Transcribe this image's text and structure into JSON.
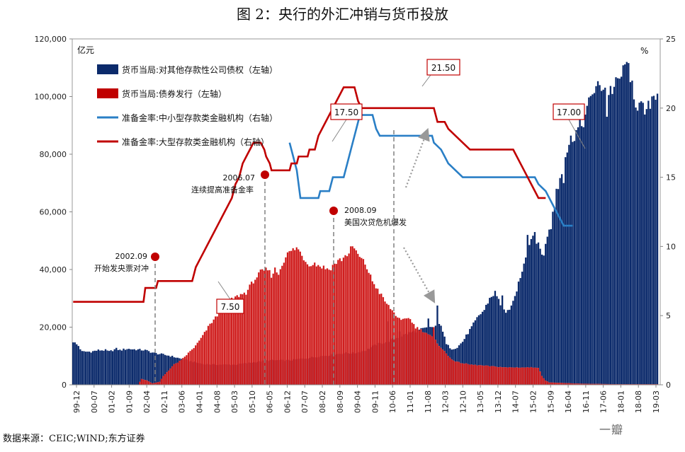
{
  "title": "图 2：央行的外汇冲销与货币投放",
  "source": "数据来源：CEIC;WIND;东方证券",
  "watermark": "一瓣",
  "chart_data": {
    "type": "bar+line",
    "title": "图 2：央行的外汇冲销与货币投放",
    "left_axis": {
      "label": "亿元",
      "min": 0,
      "max": 120000,
      "ticks": [
        0,
        20000,
        40000,
        60000,
        80000,
        100000,
        120000
      ],
      "tick_labels": [
        "0",
        "20,000",
        "40,000",
        "60,000",
        "80,000",
        "100,000",
        "120,000"
      ]
    },
    "right_axis": {
      "label": "%",
      "min": 0,
      "max": 25,
      "ticks": [
        0,
        5,
        10,
        15,
        20,
        25
      ],
      "tick_labels": [
        "0",
        "5",
        "10",
        "15",
        "20",
        "25"
      ]
    },
    "x_tick_labels": [
      "99-12",
      "00-07",
      "01-02",
      "01-09",
      "02-04",
      "02-11",
      "03-06",
      "04-01",
      "04-08",
      "05-03",
      "05-10",
      "06-05",
      "06-12",
      "07-07",
      "08-02",
      "08-09",
      "09-04",
      "09-11",
      "10-06",
      "11-01",
      "11-08",
      "12-03",
      "12-10",
      "13-05",
      "13-12",
      "14-07",
      "15-02",
      "15-09",
      "16-04",
      "16-11",
      "17-06",
      "18-01",
      "18-08",
      "19-03"
    ],
    "legend": [
      {
        "name": "货币当局:对其他存款性公司债权（左轴）",
        "color": "#0b2a6b",
        "kind": "bar"
      },
      {
        "name": "货币当局:债券发行（左轴）",
        "color": "#c00000",
        "kind": "bar"
      },
      {
        "name": "准备金率:中小型存款类金融机构（右轴）",
        "color": "#2a7fc6",
        "kind": "line"
      },
      {
        "name": "准备金率:大型存款类金融机构（右轴）",
        "color": "#c00000",
        "kind": "line"
      }
    ],
    "series": [
      {
        "name": "货币当局:对其他存款性公司债权（左轴）",
        "axis": "left",
        "points": [
          [
            0,
            15000
          ],
          [
            3,
            13500
          ],
          [
            5,
            11500
          ],
          [
            10,
            11500
          ],
          [
            14,
            12000
          ],
          [
            18,
            12000
          ],
          [
            20,
            11500
          ],
          [
            24,
            12500
          ],
          [
            26,
            12000
          ],
          [
            30,
            12500
          ],
          [
            34,
            12300
          ],
          [
            40,
            12000
          ],
          [
            45,
            11000
          ],
          [
            50,
            10500
          ],
          [
            54,
            10000
          ],
          [
            60,
            9000
          ],
          [
            66,
            8000
          ],
          [
            72,
            7200
          ],
          [
            78,
            7000
          ],
          [
            84,
            7000
          ],
          [
            90,
            7000
          ],
          [
            96,
            7500
          ],
          [
            102,
            8000
          ],
          [
            108,
            8500
          ],
          [
            114,
            8500
          ],
          [
            120,
            8500
          ],
          [
            126,
            9000
          ],
          [
            132,
            9500
          ],
          [
            138,
            10000
          ],
          [
            144,
            10500
          ],
          [
            150,
            11000
          ],
          [
            156,
            11000
          ],
          [
            162,
            12000
          ],
          [
            168,
            14000
          ],
          [
            174,
            15000
          ],
          [
            180,
            16500
          ],
          [
            186,
            18000
          ],
          [
            192,
            19000
          ],
          [
            198,
            20000
          ],
          [
            204,
            21000
          ],
          [
            207,
            14000
          ],
          [
            210,
            12500
          ],
          [
            213,
            13000
          ],
          [
            216,
            15000
          ],
          [
            219,
            18000
          ],
          [
            222,
            21000
          ],
          [
            225,
            24000
          ],
          [
            228,
            26000
          ],
          [
            231,
            30000
          ],
          [
            234,
            32000
          ],
          [
            237,
            28000
          ],
          [
            240,
            25000
          ],
          [
            243,
            26000
          ],
          [
            246,
            33000
          ],
          [
            249,
            40000
          ],
          [
            252,
            48000
          ],
          [
            255,
            52000
          ],
          [
            258,
            48000
          ],
          [
            261,
            45000
          ],
          [
            264,
            55000
          ],
          [
            267,
            62000
          ],
          [
            270,
            72000
          ],
          [
            273,
            80000
          ],
          [
            276,
            85000
          ],
          [
            279,
            88000
          ],
          [
            282,
            90000
          ],
          [
            285,
            95000
          ],
          [
            288,
            102000
          ],
          [
            291,
            103000
          ],
          [
            294,
            104000
          ],
          [
            297,
            102000
          ],
          [
            300,
            103000
          ],
          [
            303,
            106000
          ],
          [
            306,
            110000
          ],
          [
            309,
            108000
          ],
          [
            312,
            98000
          ],
          [
            315,
            96000
          ],
          [
            318,
            94000
          ],
          [
            321,
            100000
          ],
          [
            324,
            102000
          ]
        ],
        "spikes": [
          [
            174,
            22000
          ],
          [
            181,
            18500
          ],
          [
            197,
            23000
          ],
          [
            200,
            20000
          ],
          [
            202,
            27500
          ],
          [
            238,
            31000
          ],
          [
            240,
            25000
          ],
          [
            243,
            27500
          ],
          [
            252,
            52000
          ],
          [
            256,
            53000
          ],
          [
            265,
            54000
          ],
          [
            268,
            68000
          ],
          [
            272,
            70000
          ],
          [
            296,
            93000
          ],
          [
            307,
            112000
          ],
          [
            309,
            105000
          ]
        ]
      },
      {
        "name": "货币当局:债券发行（左轴）",
        "axis": "left",
        "points": [
          [
            0,
            0
          ],
          [
            36,
            0
          ],
          [
            38,
            2000
          ],
          [
            41,
            1500
          ],
          [
            44,
            500
          ],
          [
            48,
            1000
          ],
          [
            50,
            3000
          ],
          [
            53,
            5000
          ],
          [
            56,
            7000
          ],
          [
            60,
            8500
          ],
          [
            64,
            11000
          ],
          [
            68,
            13500
          ],
          [
            72,
            17000
          ],
          [
            76,
            21000
          ],
          [
            80,
            24000
          ],
          [
            84,
            28500
          ],
          [
            88,
            29500
          ],
          [
            92,
            31000
          ],
          [
            96,
            32000
          ],
          [
            100,
            36000
          ],
          [
            104,
            39000
          ],
          [
            108,
            40000
          ],
          [
            110,
            38000
          ],
          [
            112,
            40000
          ],
          [
            114,
            38500
          ],
          [
            116,
            42000
          ],
          [
            118,
            44500
          ],
          [
            120,
            46000
          ],
          [
            124,
            47500
          ],
          [
            126,
            46000
          ],
          [
            130,
            42000
          ],
          [
            134,
            42000
          ],
          [
            138,
            41000
          ],
          [
            142,
            40000
          ],
          [
            146,
            42500
          ],
          [
            150,
            44000
          ],
          [
            154,
            46500
          ],
          [
            156,
            47500
          ],
          [
            158,
            45000
          ],
          [
            162,
            42000
          ],
          [
            166,
            36000
          ],
          [
            170,
            32000
          ],
          [
            174,
            28000
          ],
          [
            178,
            25000
          ],
          [
            182,
            22000
          ],
          [
            186,
            23500
          ],
          [
            190,
            20000
          ],
          [
            196,
            18000
          ],
          [
            200,
            16000
          ],
          [
            204,
            13000
          ],
          [
            208,
            10000
          ],
          [
            212,
            8000
          ],
          [
            216,
            7500
          ],
          [
            220,
            7000
          ],
          [
            230,
            6500
          ],
          [
            240,
            6000
          ],
          [
            250,
            6000
          ],
          [
            258,
            6000
          ],
          [
            260,
            3000
          ],
          [
            262,
            1500
          ],
          [
            264,
            800
          ],
          [
            280,
            400
          ],
          [
            300,
            200
          ],
          [
            324,
            200
          ]
        ],
        "spikes": [
          [
            154,
            48000
          ],
          [
            200,
            20000
          ]
        ]
      },
      {
        "name": "准备金率:中小型存款类金融机构（右轴）",
        "axis": "right",
        "points": [
          [
            120,
            17.5
          ],
          [
            121,
            17.0
          ],
          [
            122,
            16.5
          ],
          [
            123,
            16.0
          ],
          [
            124,
            15.5
          ],
          [
            125,
            14.5
          ],
          [
            126,
            13.5
          ],
          [
            136,
            13.5
          ],
          [
            137,
            14.0
          ],
          [
            142,
            14.0
          ],
          [
            143,
            14.5
          ],
          [
            144,
            15.0
          ],
          [
            150,
            15.0
          ],
          [
            151,
            15.5
          ],
          [
            152,
            16.0
          ],
          [
            153,
            16.5
          ],
          [
            154,
            17.0
          ],
          [
            155,
            17.5
          ],
          [
            156,
            18.0
          ],
          [
            157,
            18.5
          ],
          [
            158,
            19.0
          ],
          [
            159,
            19.5
          ],
          [
            166,
            19.5
          ],
          [
            167,
            19.0
          ],
          [
            168,
            18.5
          ],
          [
            170,
            18.0
          ],
          [
            199,
            18.0
          ],
          [
            200,
            17.5
          ],
          [
            204,
            17.0
          ],
          [
            206,
            16.5
          ],
          [
            208,
            16.0
          ],
          [
            212,
            15.5
          ],
          [
            216,
            15.0
          ],
          [
            256,
            15.0
          ],
          [
            258,
            14.5
          ],
          [
            262,
            14.0
          ],
          [
            264,
            13.5
          ],
          [
            266,
            13.0
          ],
          [
            268,
            12.5
          ],
          [
            270,
            12.0
          ],
          [
            272,
            11.5
          ],
          [
            277,
            11.5
          ]
        ]
      },
      {
        "name": "准备金率:大型存款类金融机构（右轴）",
        "axis": "right",
        "points": [
          [
            0,
            6.0
          ],
          [
            39,
            6.0
          ],
          [
            40,
            7.0
          ],
          [
            46,
            7.0
          ],
          [
            47,
            7.5
          ],
          [
            66,
            7.5
          ],
          [
            67,
            8.0
          ],
          [
            68,
            8.5
          ],
          [
            70,
            9.0
          ],
          [
            72,
            9.5
          ],
          [
            74,
            10.0
          ],
          [
            76,
            10.5
          ],
          [
            78,
            11.0
          ],
          [
            80,
            11.5
          ],
          [
            82,
            12.0
          ],
          [
            84,
            12.5
          ],
          [
            86,
            13.0
          ],
          [
            88,
            13.5
          ],
          [
            90,
            14.5
          ],
          [
            92,
            15.0
          ],
          [
            94,
            16.0
          ],
          [
            96,
            16.5
          ],
          [
            98,
            17.0
          ],
          [
            100,
            17.5
          ],
          [
            104,
            17.5
          ],
          [
            106,
            17.0
          ],
          [
            107,
            16.5
          ],
          [
            109,
            16.0
          ],
          [
            110,
            15.5
          ],
          [
            120,
            15.5
          ],
          [
            121,
            16.0
          ],
          [
            124,
            16.0
          ],
          [
            125,
            16.5
          ],
          [
            130,
            16.5
          ],
          [
            131,
            17.0
          ],
          [
            134,
            17.0
          ],
          [
            135,
            17.5
          ],
          [
            136,
            18.0
          ],
          [
            138,
            18.5
          ],
          [
            140,
            19.0
          ],
          [
            142,
            19.5
          ],
          [
            144,
            20.0
          ],
          [
            146,
            20.5
          ],
          [
            148,
            21.0
          ],
          [
            150,
            21.5
          ],
          [
            156,
            21.5
          ],
          [
            157,
            21.0
          ],
          [
            158,
            20.5
          ],
          [
            160,
            20.0
          ],
          [
            200,
            20.0
          ],
          [
            201,
            19.5
          ],
          [
            202,
            19.0
          ],
          [
            206,
            19.0
          ],
          [
            208,
            18.5
          ],
          [
            212,
            18.0
          ],
          [
            216,
            17.5
          ],
          [
            220,
            17.0
          ],
          [
            244,
            17.0
          ],
          [
            246,
            16.5
          ],
          [
            248,
            16.0
          ],
          [
            250,
            15.5
          ],
          [
            252,
            15.0
          ],
          [
            254,
            14.5
          ],
          [
            256,
            14.0
          ],
          [
            258,
            13.5
          ],
          [
            262,
            13.5
          ]
        ]
      }
    ],
    "annotations": [
      {
        "date": "2002.09",
        "text": "开始发央票对冲"
      },
      {
        "date": "2006.07",
        "text": "连续提高准备金率"
      },
      {
        "date": "2008.09",
        "text": "美国次贷危机爆发"
      }
    ],
    "callouts": [
      "7.50",
      "17.50",
      "21.50",
      "17.00"
    ]
  }
}
